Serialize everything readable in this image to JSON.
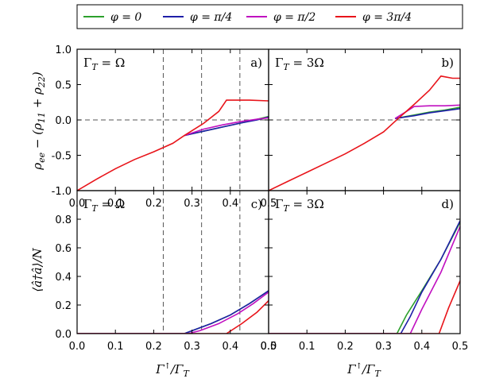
{
  "chart_data": [
    {
      "type": "line",
      "panel": "a)",
      "gamma_label": "Γ_T = Ω",
      "xlim": [
        0.0,
        0.5
      ],
      "ylim": [
        -1.0,
        1.0
      ],
      "ylabel": "ρ_ee − (ρ11 + ρ22)",
      "xticks": [
        "0.0",
        "0.1",
        "0.2",
        "0.3",
        "0.4",
        "0.5"
      ],
      "yticks": [
        "-1.0",
        "-0.5",
        "0.0",
        "0.5",
        "1.0"
      ],
      "vlines": [
        0.225,
        0.325,
        0.425
      ],
      "hline": 0.0,
      "series": [
        {
          "name": "φ = 0",
          "color": "#2ca02c",
          "x": [
            0.28,
            0.33,
            0.38,
            0.43,
            0.47,
            0.5
          ],
          "y": [
            -0.22,
            -0.16,
            -0.1,
            -0.04,
            0.01,
            0.05
          ]
        },
        {
          "name": "φ = π/4",
          "color": "#1f1fa8",
          "x": [
            0.28,
            0.33,
            0.38,
            0.43,
            0.47,
            0.5
          ],
          "y": [
            -0.22,
            -0.16,
            -0.1,
            -0.04,
            0.0,
            0.04
          ]
        },
        {
          "name": "φ = π/2",
          "color": "#c010c0",
          "x": [
            0.28,
            0.33,
            0.38,
            0.43,
            0.47,
            0.5
          ],
          "y": [
            -0.22,
            -0.13,
            -0.07,
            -0.02,
            0.01,
            0.03
          ]
        },
        {
          "name": "φ = 3π/4",
          "color": "#e8141a",
          "x": [
            0.0,
            0.05,
            0.1,
            0.15,
            0.2,
            0.25,
            0.28,
            0.33,
            0.37,
            0.39,
            0.45,
            0.5
          ],
          "y": [
            -1.0,
            -0.84,
            -0.69,
            -0.56,
            -0.45,
            -0.33,
            -0.22,
            -0.05,
            0.12,
            0.28,
            0.28,
            0.27
          ]
        }
      ]
    },
    {
      "type": "line",
      "panel": "b)",
      "gamma_label": "Γ_T = 3Ω",
      "xlim": [
        0.0,
        0.5
      ],
      "ylim": [
        -1.0,
        1.0
      ],
      "hline": 0.0,
      "series": [
        {
          "name": "φ = 0",
          "color": "#2ca02c",
          "x": [
            0.33,
            0.38,
            0.42,
            0.46,
            0.5
          ],
          "y": [
            0.02,
            0.07,
            0.11,
            0.14,
            0.18
          ]
        },
        {
          "name": "φ = π/4",
          "color": "#1f1fa8",
          "x": [
            0.33,
            0.38,
            0.42,
            0.46,
            0.5
          ],
          "y": [
            0.02,
            0.06,
            0.1,
            0.13,
            0.16
          ]
        },
        {
          "name": "φ = π/2",
          "color": "#c010c0",
          "x": [
            0.33,
            0.36,
            0.38,
            0.42,
            0.46,
            0.5
          ],
          "y": [
            0.02,
            0.12,
            0.19,
            0.2,
            0.2,
            0.21
          ]
        },
        {
          "name": "φ = 3π/4",
          "color": "#e8141a",
          "x": [
            0.0,
            0.05,
            0.1,
            0.15,
            0.2,
            0.25,
            0.3,
            0.33,
            0.38,
            0.42,
            0.45,
            0.46,
            0.48,
            0.5
          ],
          "y": [
            -1.0,
            -0.87,
            -0.74,
            -0.61,
            -0.48,
            -0.33,
            -0.17,
            -0.02,
            0.22,
            0.42,
            0.62,
            0.61,
            0.59,
            0.59
          ]
        }
      ]
    },
    {
      "type": "line",
      "panel": "c)",
      "gamma_label": "Γ_T = Ω",
      "xlim": [
        0.0,
        0.5
      ],
      "ylim": [
        0.0,
        1.0
      ],
      "ylabel": "⟨â†â⟩/N",
      "xlabel": "Γ↑/Γ_T",
      "xticks": [
        "0.0",
        "0.1",
        "0.2",
        "0.3",
        "0.4",
        "0.5"
      ],
      "yticks": [
        "0.0",
        "0.2",
        "0.4",
        "0.6",
        "0.8",
        "1.0"
      ],
      "vlines": [
        0.225,
        0.325,
        0.425
      ],
      "series": [
        {
          "name": "φ = 0",
          "color": "#2ca02c",
          "x": [
            0.0,
            0.28,
            0.3,
            0.35,
            0.4,
            0.45,
            0.5
          ],
          "y": [
            0.0,
            0.0,
            0.02,
            0.07,
            0.13,
            0.21,
            0.3
          ]
        },
        {
          "name": "φ = π/4",
          "color": "#1f1fa8",
          "x": [
            0.0,
            0.28,
            0.3,
            0.35,
            0.4,
            0.45,
            0.5
          ],
          "y": [
            0.0,
            0.0,
            0.02,
            0.07,
            0.13,
            0.21,
            0.3
          ]
        },
        {
          "name": "φ = π/2",
          "color": "#c010c0",
          "x": [
            0.0,
            0.29,
            0.32,
            0.37,
            0.42,
            0.46,
            0.5
          ],
          "y": [
            0.0,
            0.0,
            0.02,
            0.07,
            0.14,
            0.21,
            0.29
          ]
        },
        {
          "name": "φ = 3π/4",
          "color": "#e8141a",
          "x": [
            0.0,
            0.39,
            0.43,
            0.47,
            0.5
          ],
          "y": [
            0.0,
            0.0,
            0.07,
            0.15,
            0.23
          ]
        }
      ]
    },
    {
      "type": "line",
      "panel": "d)",
      "gamma_label": "Γ_T = 3Ω",
      "xlim": [
        0.0,
        0.5
      ],
      "ylim": [
        0.0,
        1.0
      ],
      "xlabel": "Γ↑/Γ_T",
      "xticks": [
        "0.0",
        "0.1",
        "0.2",
        "0.3",
        "0.4",
        "0.5"
      ],
      "series": [
        {
          "name": "φ = 0",
          "color": "#2ca02c",
          "x": [
            0.0,
            0.335,
            0.36,
            0.4,
            0.45,
            0.5
          ],
          "y": [
            0.0,
            0.0,
            0.13,
            0.3,
            0.52,
            0.78
          ]
        },
        {
          "name": "φ = π/4",
          "color": "#1f1fa8",
          "x": [
            0.0,
            0.345,
            0.37,
            0.4,
            0.45,
            0.5
          ],
          "y": [
            0.0,
            0.0,
            0.12,
            0.29,
            0.52,
            0.79
          ]
        },
        {
          "name": "φ = π/2",
          "color": "#c010c0",
          "x": [
            0.0,
            0.37,
            0.4,
            0.45,
            0.5
          ],
          "y": [
            0.0,
            0.0,
            0.17,
            0.43,
            0.75
          ]
        },
        {
          "name": "φ = 3π/4",
          "color": "#e8141a",
          "x": [
            0.0,
            0.445,
            0.47,
            0.5
          ],
          "y": [
            0.0,
            0.0,
            0.18,
            0.37
          ]
        }
      ]
    }
  ],
  "legend": {
    "placement": "top",
    "entries": [
      {
        "label": "φ = 0",
        "color": "#2ca02c"
      },
      {
        "label": "φ = π/4",
        "color": "#1f1fa8"
      },
      {
        "label": "φ = π/2",
        "color": "#c010c0"
      },
      {
        "label": "φ = 3π/4",
        "color": "#e8141a"
      }
    ]
  }
}
